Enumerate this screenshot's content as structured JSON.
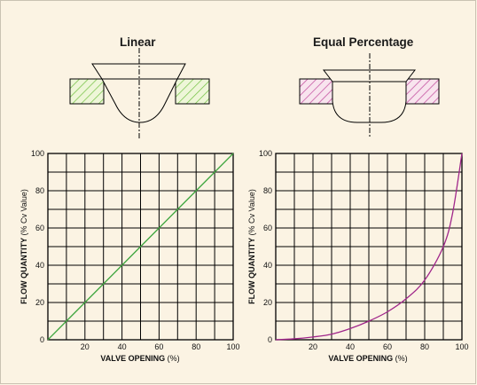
{
  "diagrams": [
    {
      "title": "Linear"
    },
    {
      "title": "Equal Percentage"
    }
  ],
  "colors": {
    "background": "#fbf3e3",
    "grid": "#000000",
    "linear_curve": "#3fa63f",
    "equal_percentage_curve": "#a0268a",
    "linear_hatch": "#6fbf3f",
    "equal_percentage_hatch": "#c0469a"
  },
  "chart_data": [
    {
      "type": "line",
      "title": "Linear",
      "xlabel": "VALVE OPENING",
      "xlabel_unit": "(%)",
      "ylabel": "FLOW QUANTITY",
      "ylabel_unit": "(% Cv Value)",
      "x_ticks": [
        "20",
        "40",
        "60",
        "80",
        "100"
      ],
      "y_ticks": [
        "0",
        "20",
        "40",
        "60",
        "80",
        "100"
      ],
      "xlim": [
        0,
        100
      ],
      "ylim": [
        0,
        100
      ],
      "grid": true,
      "series": [
        {
          "x": [
            0,
            10,
            20,
            30,
            40,
            50,
            60,
            70,
            80,
            90,
            100
          ],
          "y": [
            0,
            10,
            20,
            30,
            40,
            50,
            60,
            70,
            80,
            90,
            100
          ]
        }
      ]
    },
    {
      "type": "line",
      "title": "Equal Percentage",
      "xlabel": "VALVE OPENING",
      "xlabel_unit": "(%)",
      "ylabel": "FLOW QUANTITY",
      "ylabel_unit": "(% Cv Value)",
      "x_ticks": [
        "20",
        "40",
        "60",
        "80",
        "100"
      ],
      "y_ticks": [
        "0",
        "20",
        "40",
        "60",
        "80",
        "100"
      ],
      "xlim": [
        0,
        100
      ],
      "ylim": [
        0,
        100
      ],
      "grid": true,
      "series": [
        {
          "x": [
            0,
            10,
            20,
            30,
            40,
            50,
            60,
            70,
            80,
            90,
            95,
            100
          ],
          "y": [
            0,
            0.5,
            1.5,
            3,
            6,
            10,
            15,
            22,
            32,
            50,
            68,
            100
          ]
        }
      ]
    }
  ]
}
